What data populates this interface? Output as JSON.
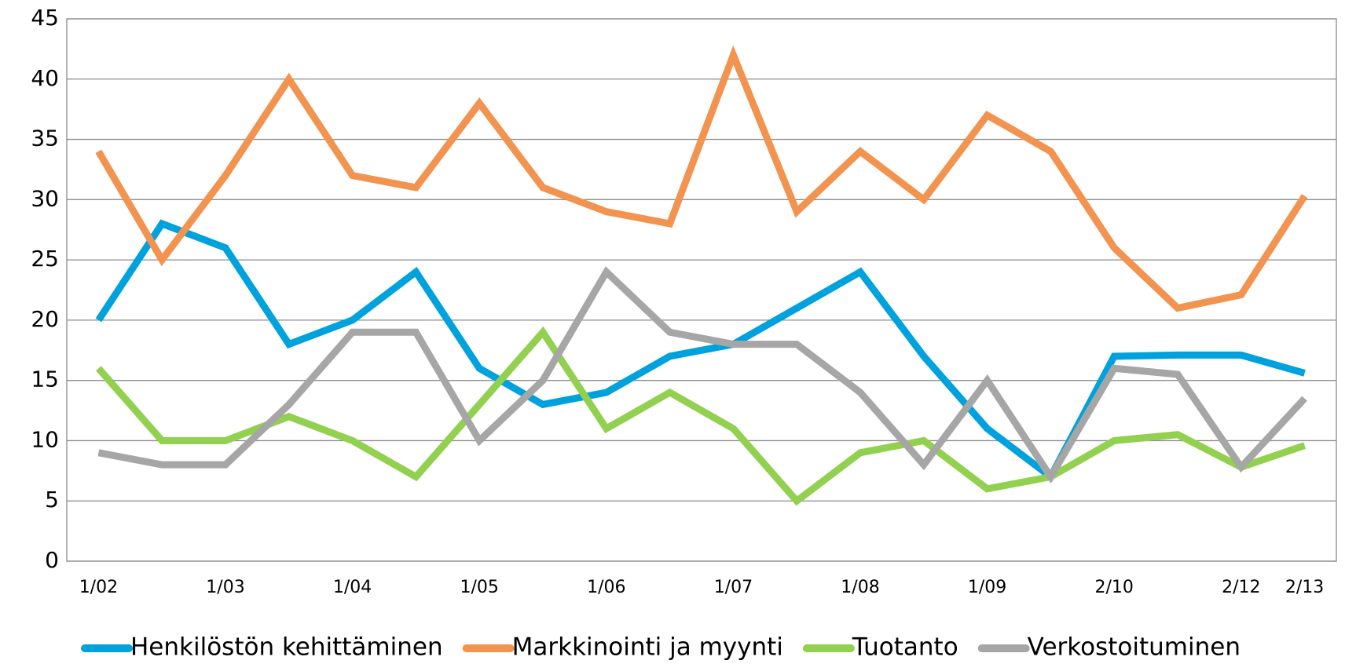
{
  "chart_data": {
    "type": "line",
    "categories": [
      "1/02",
      null,
      "1/03",
      null,
      "1/04",
      null,
      "1/05",
      null,
      "1/06",
      null,
      "1/07",
      null,
      "1/08",
      null,
      "1/09",
      null,
      "2/10",
      null,
      "2/12",
      "2/13"
    ],
    "series": [
      {
        "name": "Henkilöstön kehittäminen",
        "color": "#00a2de",
        "values": [
          20,
          28,
          26,
          18,
          20,
          24,
          16,
          13,
          14,
          17,
          18,
          21,
          24,
          17,
          11,
          7,
          17,
          17.1,
          17.1,
          15.6
        ]
      },
      {
        "name": "Markkinointi ja myynti",
        "color": "#f29350",
        "values": [
          34,
          25,
          32,
          40,
          32,
          31,
          38,
          31,
          29,
          28,
          42,
          29,
          34,
          30,
          37,
          34,
          26,
          21,
          22.1,
          30.3
        ]
      },
      {
        "name": "Tuotanto",
        "color": "#92d050",
        "values": [
          16,
          10,
          10,
          12,
          10,
          7,
          13,
          19,
          11,
          14,
          11,
          5,
          9,
          10,
          6,
          7,
          10,
          10.5,
          7.8,
          9.6
        ]
      },
      {
        "name": "Verkostoituminen",
        "color": "#a6a6a6",
        "values": [
          9,
          8,
          8,
          13,
          19,
          19,
          10,
          15,
          24,
          19,
          18,
          18,
          14,
          8,
          15,
          7,
          16,
          15.5,
          7.8,
          13.5
        ]
      }
    ],
    "ylim": [
      0,
      45
    ],
    "yticks": [
      0,
      5,
      10,
      15,
      20,
      25,
      30,
      35,
      40,
      45
    ],
    "grid": true,
    "legend": "bottom"
  }
}
